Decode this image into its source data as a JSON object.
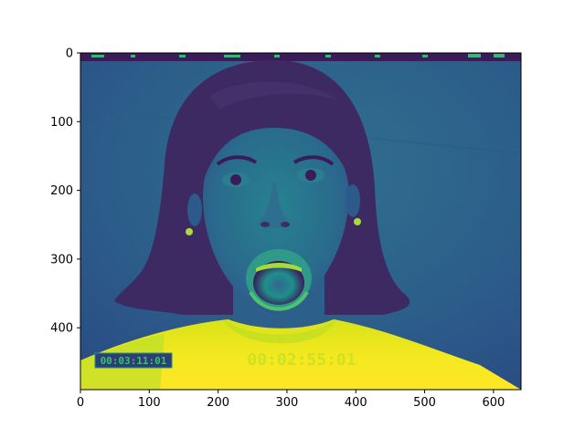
{
  "chart_data": {
    "type": "image",
    "colormap": "viridis",
    "image_width": 640,
    "image_height": 490,
    "xlim": [
      0,
      640
    ],
    "ylim": [
      490,
      0
    ],
    "x_ticks": [
      0,
      100,
      200,
      300,
      400,
      500,
      600
    ],
    "y_ticks": [
      0,
      100,
      200,
      300,
      400
    ],
    "x_tick_labels": [
      "0",
      "100",
      "200",
      "300",
      "400",
      "500",
      "600"
    ],
    "y_tick_labels": [
      "0",
      "100",
      "200",
      "300",
      "400"
    ],
    "embedded_text": {
      "timecode_box": "00:03:11:01",
      "timecode_ghost": "00:02:55:01"
    }
  },
  "colors": {
    "viridis_dark": "#440154",
    "viridis_deep": "#3b1c5a",
    "viridis_blue": "#31688e",
    "viridis_teal": "#21918c",
    "viridis_green": "#35b779",
    "viridis_lime": "#90d743",
    "viridis_yellow": "#fde725"
  }
}
